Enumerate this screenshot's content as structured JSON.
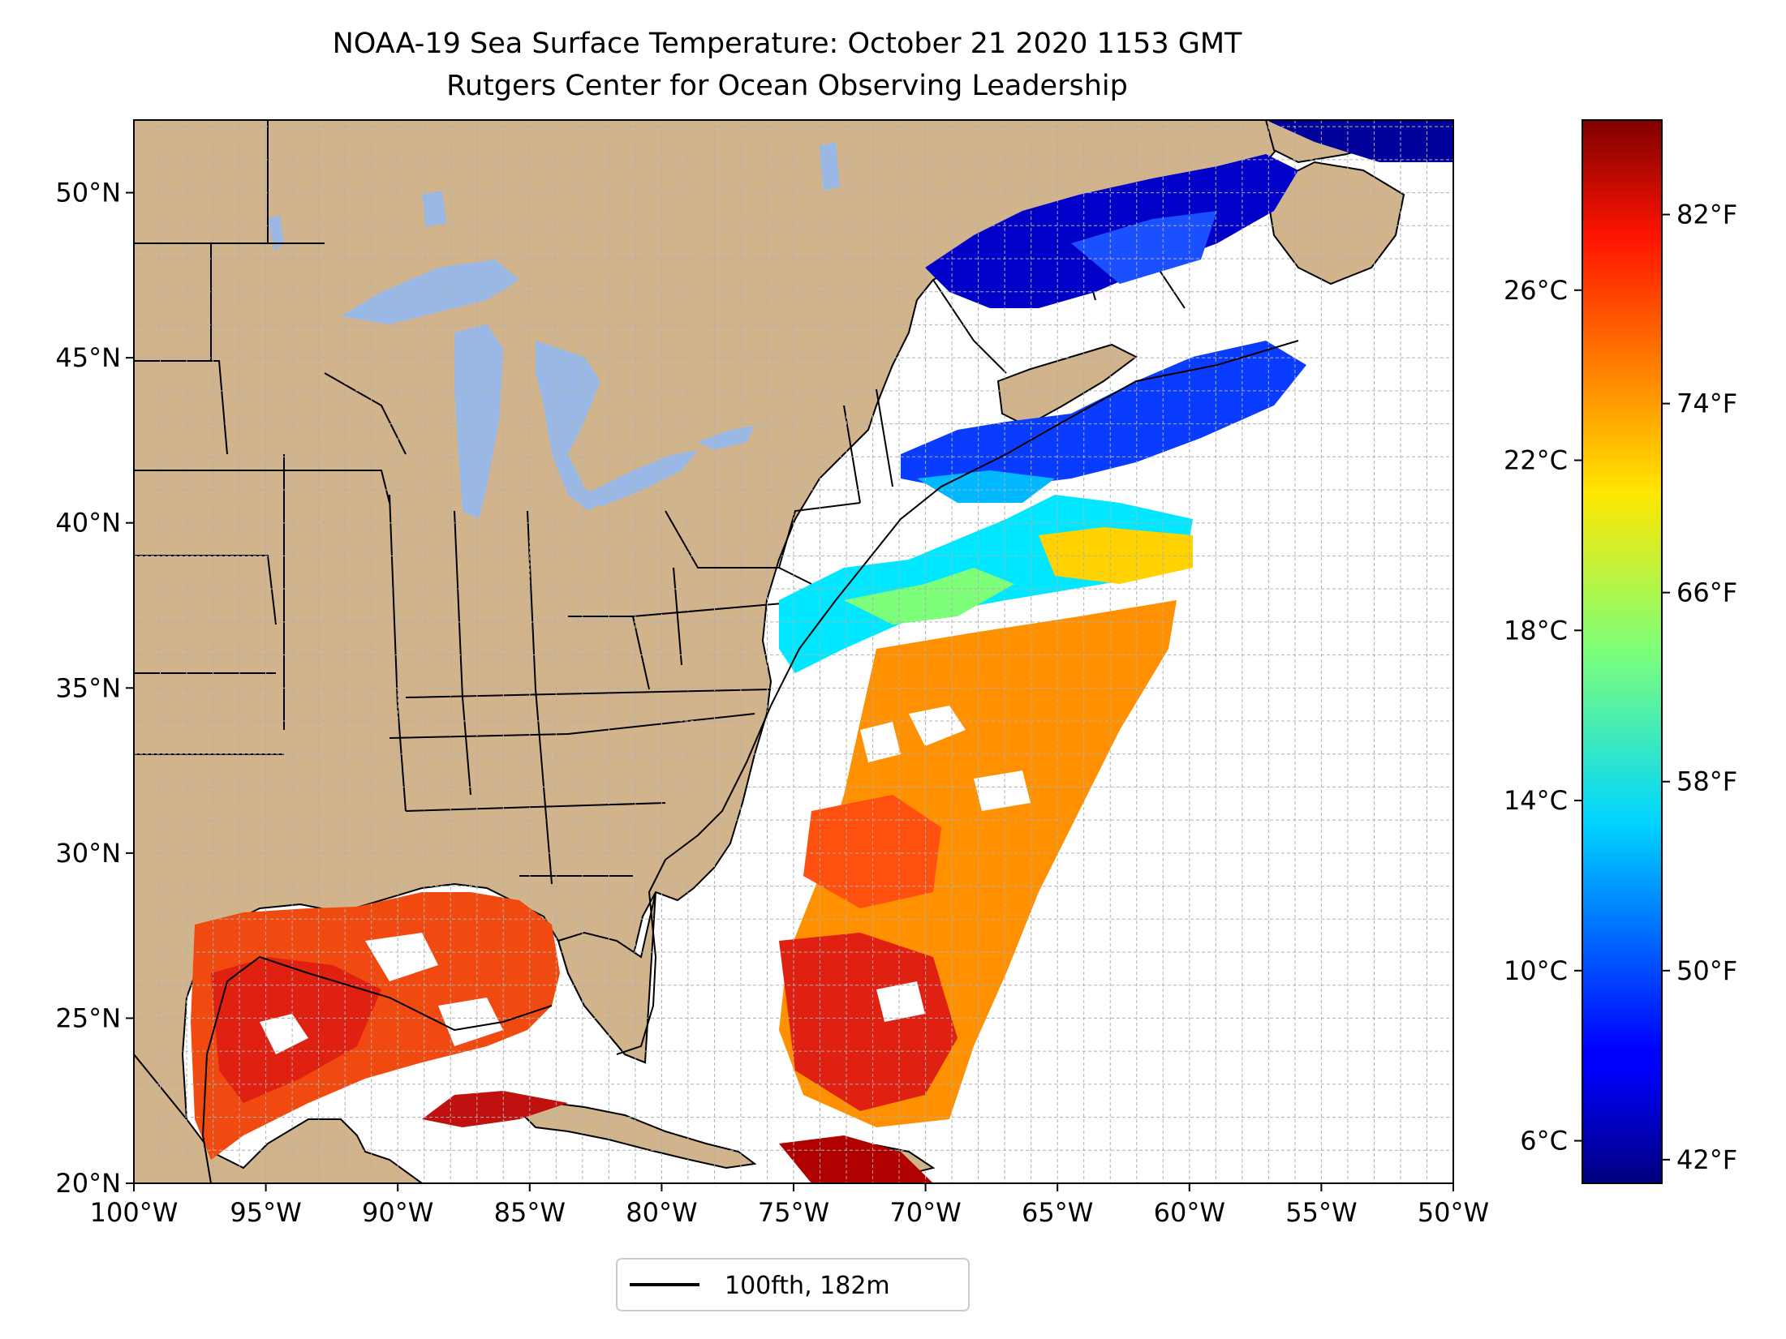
{
  "title": {
    "line1": "NOAA-19 Sea Surface Temperature: October 21 2020 1153 GMT",
    "line2": "Rutgers Center for Ocean Observing Leadership"
  },
  "map": {
    "lon_range": [
      -100,
      -50
    ],
    "lat_range": [
      20,
      52.2
    ],
    "lon_ticks": [
      "100°W",
      "95°W",
      "90°W",
      "85°W",
      "80°W",
      "75°W",
      "70°W",
      "65°W",
      "60°W",
      "55°W",
      "50°W"
    ],
    "lat_ticks": [
      "20°N",
      "25°N",
      "30°N",
      "35°N",
      "40°N",
      "45°N",
      "50°N"
    ],
    "gridlines": true,
    "colors": {
      "land": "#d2b48c",
      "lakes": "#9ab8e6",
      "borders": "#000000",
      "gridline": "#b0b0b0"
    }
  },
  "colorbar": {
    "colormap": "jet",
    "range_celsius": [
      5,
      30
    ],
    "celsius_ticks": [
      {
        "value": 6,
        "label": "6°C"
      },
      {
        "value": 10,
        "label": "10°C"
      },
      {
        "value": 14,
        "label": "14°C"
      },
      {
        "value": 18,
        "label": "18°C"
      },
      {
        "value": 22,
        "label": "22°C"
      },
      {
        "value": 26,
        "label": "26°C"
      }
    ],
    "fahrenheit_ticks": [
      {
        "value": 42,
        "label": "42°F"
      },
      {
        "value": 50,
        "label": "50°F"
      },
      {
        "value": 58,
        "label": "58°F"
      },
      {
        "value": 66,
        "label": "66°F"
      },
      {
        "value": 74,
        "label": "74°F"
      },
      {
        "value": 82,
        "label": "82°F"
      }
    ]
  },
  "legend": {
    "entries": [
      {
        "label": "100fth, 182m",
        "color": "#000000"
      }
    ]
  }
}
